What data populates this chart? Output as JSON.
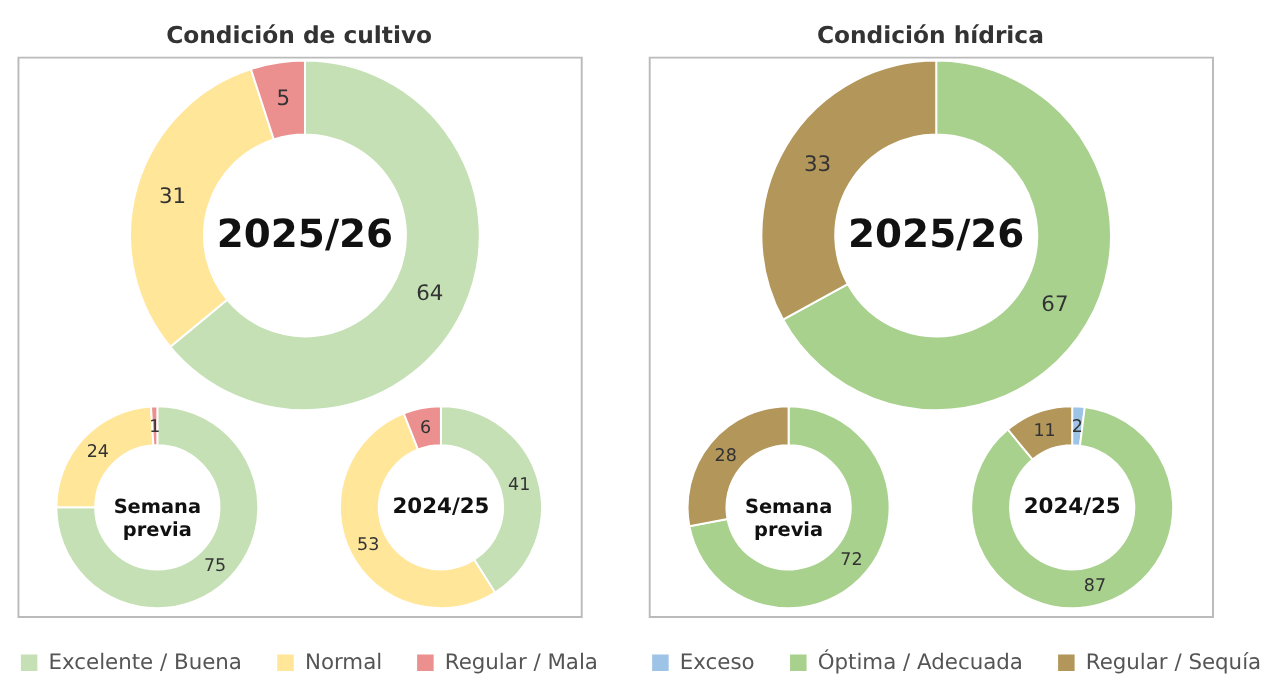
{
  "chart_data": [
    {
      "type": "donut",
      "title": "Condición de cultivo",
      "legend": "bottom",
      "data_labels": true,
      "categories": [
        "Excelente / Buena",
        "Normal",
        "Regular / Mala"
      ],
      "colors": [
        "#c5e0b4",
        "#ffe699",
        "#ec8f8f"
      ],
      "series": [
        {
          "name": "2025/26",
          "values": [
            64,
            31,
            5
          ]
        },
        {
          "name": "Semana previa",
          "values": [
            75,
            24,
            1
          ]
        },
        {
          "name": "2024/25",
          "values": [
            41,
            53,
            6
          ]
        }
      ]
    },
    {
      "type": "donut",
      "title": "Condición hídrica",
      "legend": "bottom",
      "data_labels": true,
      "categories": [
        "Exceso",
        "Óptima / Adecuada",
        "Regular / Sequía"
      ],
      "colors": [
        "#9dc3e6",
        "#a9d18e",
        "#b3965a"
      ],
      "series": [
        {
          "name": "2025/26",
          "values": [
            null,
            67,
            33
          ]
        },
        {
          "name": "Semana previa",
          "values": [
            null,
            72,
            28
          ]
        },
        {
          "name": "2024/25",
          "values": [
            2,
            87,
            11
          ]
        }
      ]
    }
  ]
}
